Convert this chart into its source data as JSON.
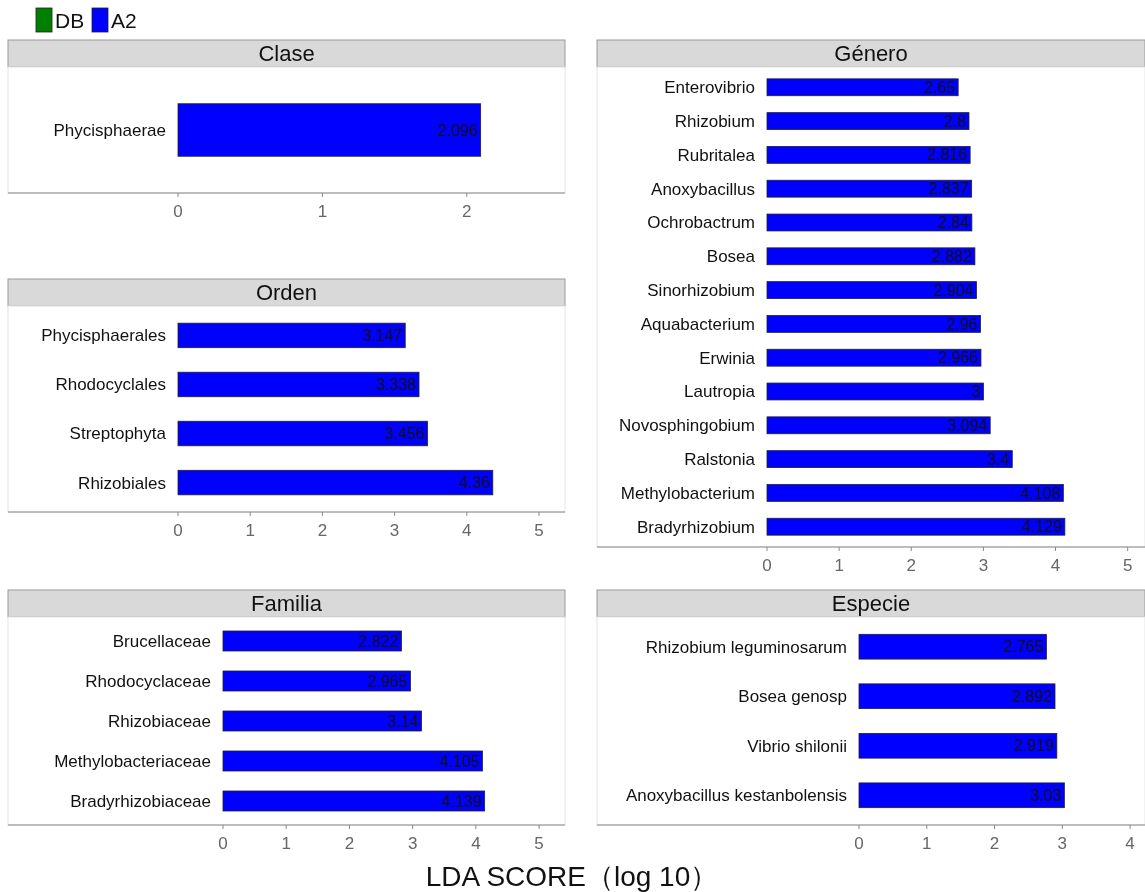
{
  "chart_data": [
    {
      "type": "bar",
      "orientation": "horizontal",
      "title": "Clase",
      "categories": [
        "Phycisphaerae"
      ],
      "series": [
        {
          "name": "DB",
          "color": "#008000",
          "values": [
            null
          ]
        },
        {
          "name": "A2",
          "color": "#0000ff",
          "values": [
            2.096
          ]
        }
      ],
      "xlim": [
        0,
        2.68
      ],
      "xticks": [
        0,
        1,
        2
      ],
      "data_labels": true,
      "legend": "top left"
    },
    {
      "type": "bar",
      "orientation": "horizontal",
      "title": "Orden",
      "categories": [
        "Phycisphaerales",
        "Rhodocyclales",
        "Streptophyta",
        "Rhizobiales"
      ],
      "series": [
        {
          "color": "#0000ff",
          "values": [
            3.147,
            3.338,
            3.456,
            4.36
          ]
        }
      ],
      "xlim": [
        0,
        5.36
      ],
      "xticks": [
        0,
        1,
        2,
        3,
        4,
        5
      ],
      "data_labels": true
    },
    {
      "type": "bar",
      "orientation": "horizontal",
      "title": "Género",
      "categories": [
        "Enterovibrio",
        "Rhizobium",
        "Rubritalea",
        "Anoxybacillus",
        "Ochrobactrum",
        "Bosea",
        "Sinorhizobium",
        "Aquabacterium",
        "Erwinia",
        "Lautropia",
        "Novosphingobium",
        "Ralstonia",
        "Methylobacterium",
        "Bradyrhizobium"
      ],
      "series": [
        {
          "color": "#0000ff",
          "values": [
            2.65,
            2.8,
            2.816,
            2.837,
            2.84,
            2.882,
            2.904,
            2.96,
            2.966,
            3,
            3.094,
            3.4,
            4.108,
            4.129
          ]
        }
      ],
      "xlim": [
        0,
        5.24
      ],
      "xticks": [
        0,
        1,
        2,
        3,
        4,
        5
      ],
      "data_labels": true
    },
    {
      "type": "bar",
      "orientation": "horizontal",
      "title": "Familia",
      "categories": [
        "Brucellaceae",
        "Rhodocyclaceae",
        "Rhizobiaceae",
        "Methylobacteriaceae",
        "Bradyrhizobiaceae"
      ],
      "series": [
        {
          "color": "#0000ff",
          "values": [
            2.822,
            2.965,
            3.14,
            4.105,
            4.139
          ]
        }
      ],
      "xlim": [
        0,
        5.41
      ],
      "xticks": [
        0,
        1,
        2,
        3,
        4,
        5
      ],
      "data_labels": true
    },
    {
      "type": "bar",
      "orientation": "horizontal",
      "title": "Especie",
      "categories": [
        "Rhizobium leguminosarum",
        "Bosea genosp",
        "Vibrio shilonii",
        "Anoxybacillus kestanbolensis"
      ],
      "series": [
        {
          "color": "#0000ff",
          "values": [
            2.765,
            2.892,
            2.919,
            3.03
          ]
        }
      ],
      "xlim": [
        0,
        4.22
      ],
      "xticks": [
        0,
        1,
        2,
        3,
        4
      ],
      "data_labels": true,
      "xlabel": "LDA SCORE（log 10）"
    }
  ]
}
